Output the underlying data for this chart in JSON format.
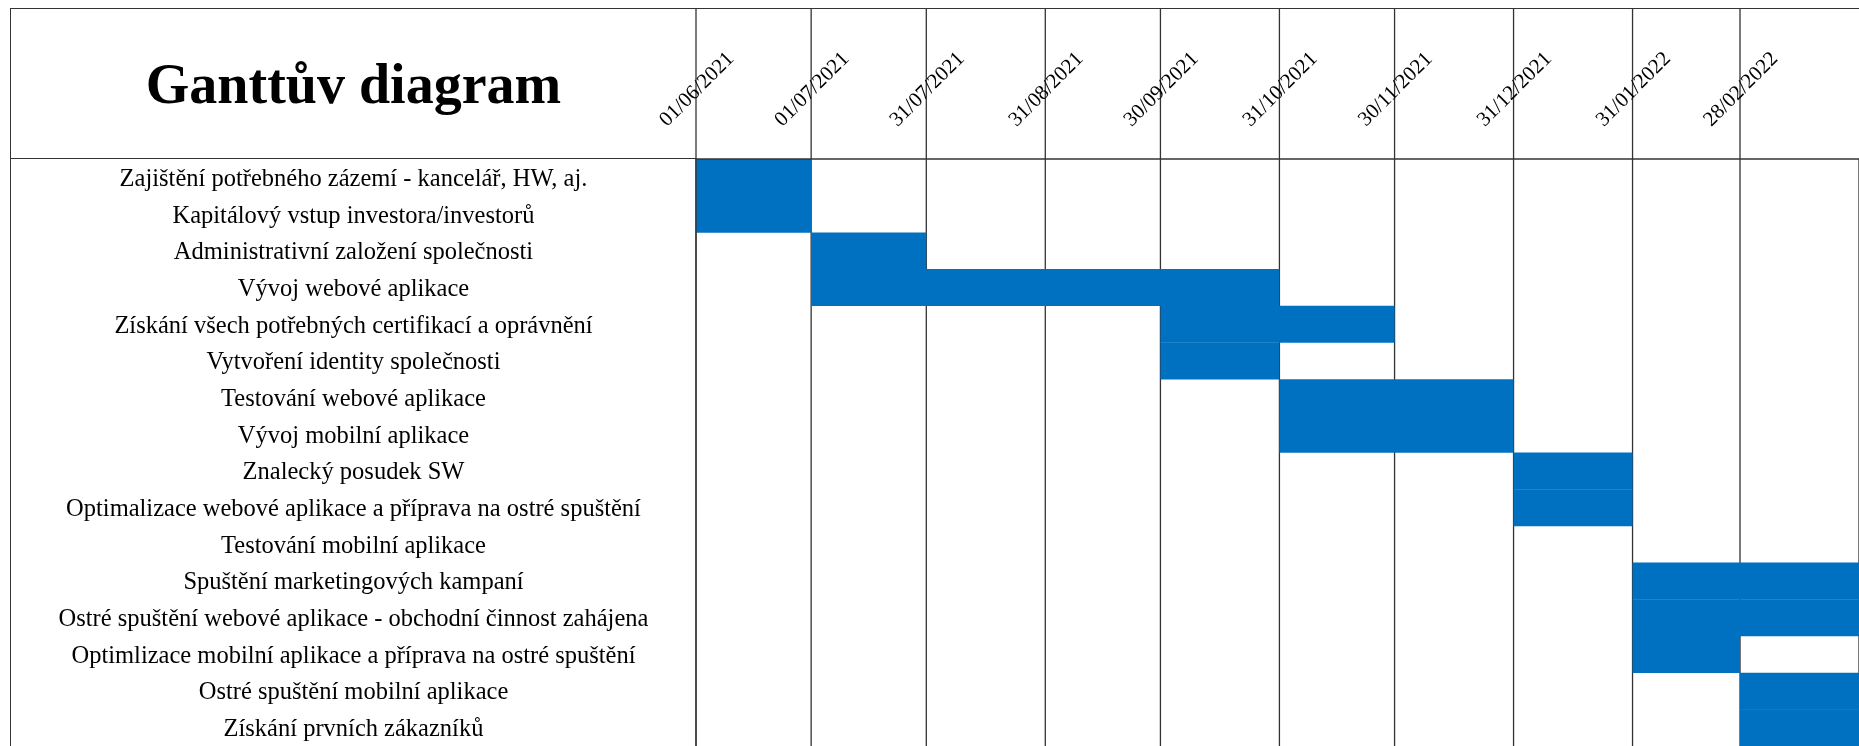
{
  "chart_data": {
    "type": "bar",
    "orientation": "horizontal",
    "title": "Ganttův diagram",
    "categories": [
      "Zajištění potřebného zázemí - kancelář, HW, aj.",
      "Kapitálový vstup investora/investorů",
      "Administrativní založení společnosti",
      "Vývoj webové aplikace",
      "Získání všech potřebných certifikací a oprávnění",
      "Vytvoření identity společnosti",
      "Testování webové aplikace",
      "Vývoj mobilní aplikace",
      "Znalecký posudek SW",
      "Optimalizace webové aplikace a příprava na ostré spuštění",
      "Testování mobilní aplikace",
      "Spuštění marketingových kampaní",
      "Ostré spuštění webové aplikace - obchodní činnost zahájena",
      "Optimlizace mobilní aplikace a příprava na ostré spuštění",
      "Ostré spuštění mobilní aplikace",
      "Získání prvních zákazníků"
    ],
    "base": [
      18779,
      18779,
      18809,
      18809,
      18900,
      18900,
      18931,
      18931,
      18992,
      18992,
      null,
      19023,
      19023,
      19023,
      19051,
      19051
    ],
    "values": [
      30,
      30,
      30,
      122,
      61,
      31,
      61,
      61,
      31,
      31,
      null,
      59,
      59,
      28,
      31,
      31
    ],
    "color": "#0070c0",
    "xlim": [
      "2021-06-01",
      "2022-03-31"
    ],
    "xticks": [
      {
        "value": "2021-06-01",
        "label": "01/06/2021"
      },
      {
        "value": "2021-07-01",
        "label": "01/07/2021"
      },
      {
        "value": "2021-07-31",
        "label": "31/07/2021"
      },
      {
        "value": "2021-08-31",
        "label": "31/08/2021"
      },
      {
        "value": "2021-09-30",
        "label": "30/09/2021"
      },
      {
        "value": "2021-10-31",
        "label": "31/10/2021"
      },
      {
        "value": "2021-11-30",
        "label": "30/11/2021"
      },
      {
        "value": "2021-12-31",
        "label": "31/12/2021"
      },
      {
        "value": "2022-01-31",
        "label": "31/01/2022"
      },
      {
        "value": "2022-02-28",
        "label": "28/02/2022"
      }
    ],
    "grid": "x"
  }
}
